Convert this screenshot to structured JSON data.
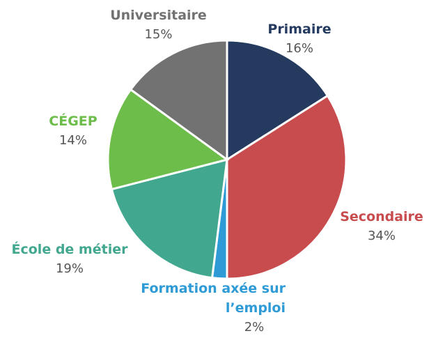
{
  "chart_data": {
    "type": "pie",
    "categories": [
      "Primaire",
      "Secondaire",
      "Formation axée sur l’emploi",
      "École de métier",
      "CÉGEP",
      "Universitaire"
    ],
    "values": [
      16,
      34,
      2,
      19,
      14,
      15
    ],
    "value_labels": [
      "16%",
      "34%",
      "2%",
      "19%",
      "14%",
      "15%"
    ],
    "colors": [
      "#243a5e",
      "#c84b4e",
      "#2e9bd6",
      "#41a78f",
      "#6dbd4a",
      "#727272"
    ],
    "start_angle": 90,
    "direction": "clockwise"
  }
}
